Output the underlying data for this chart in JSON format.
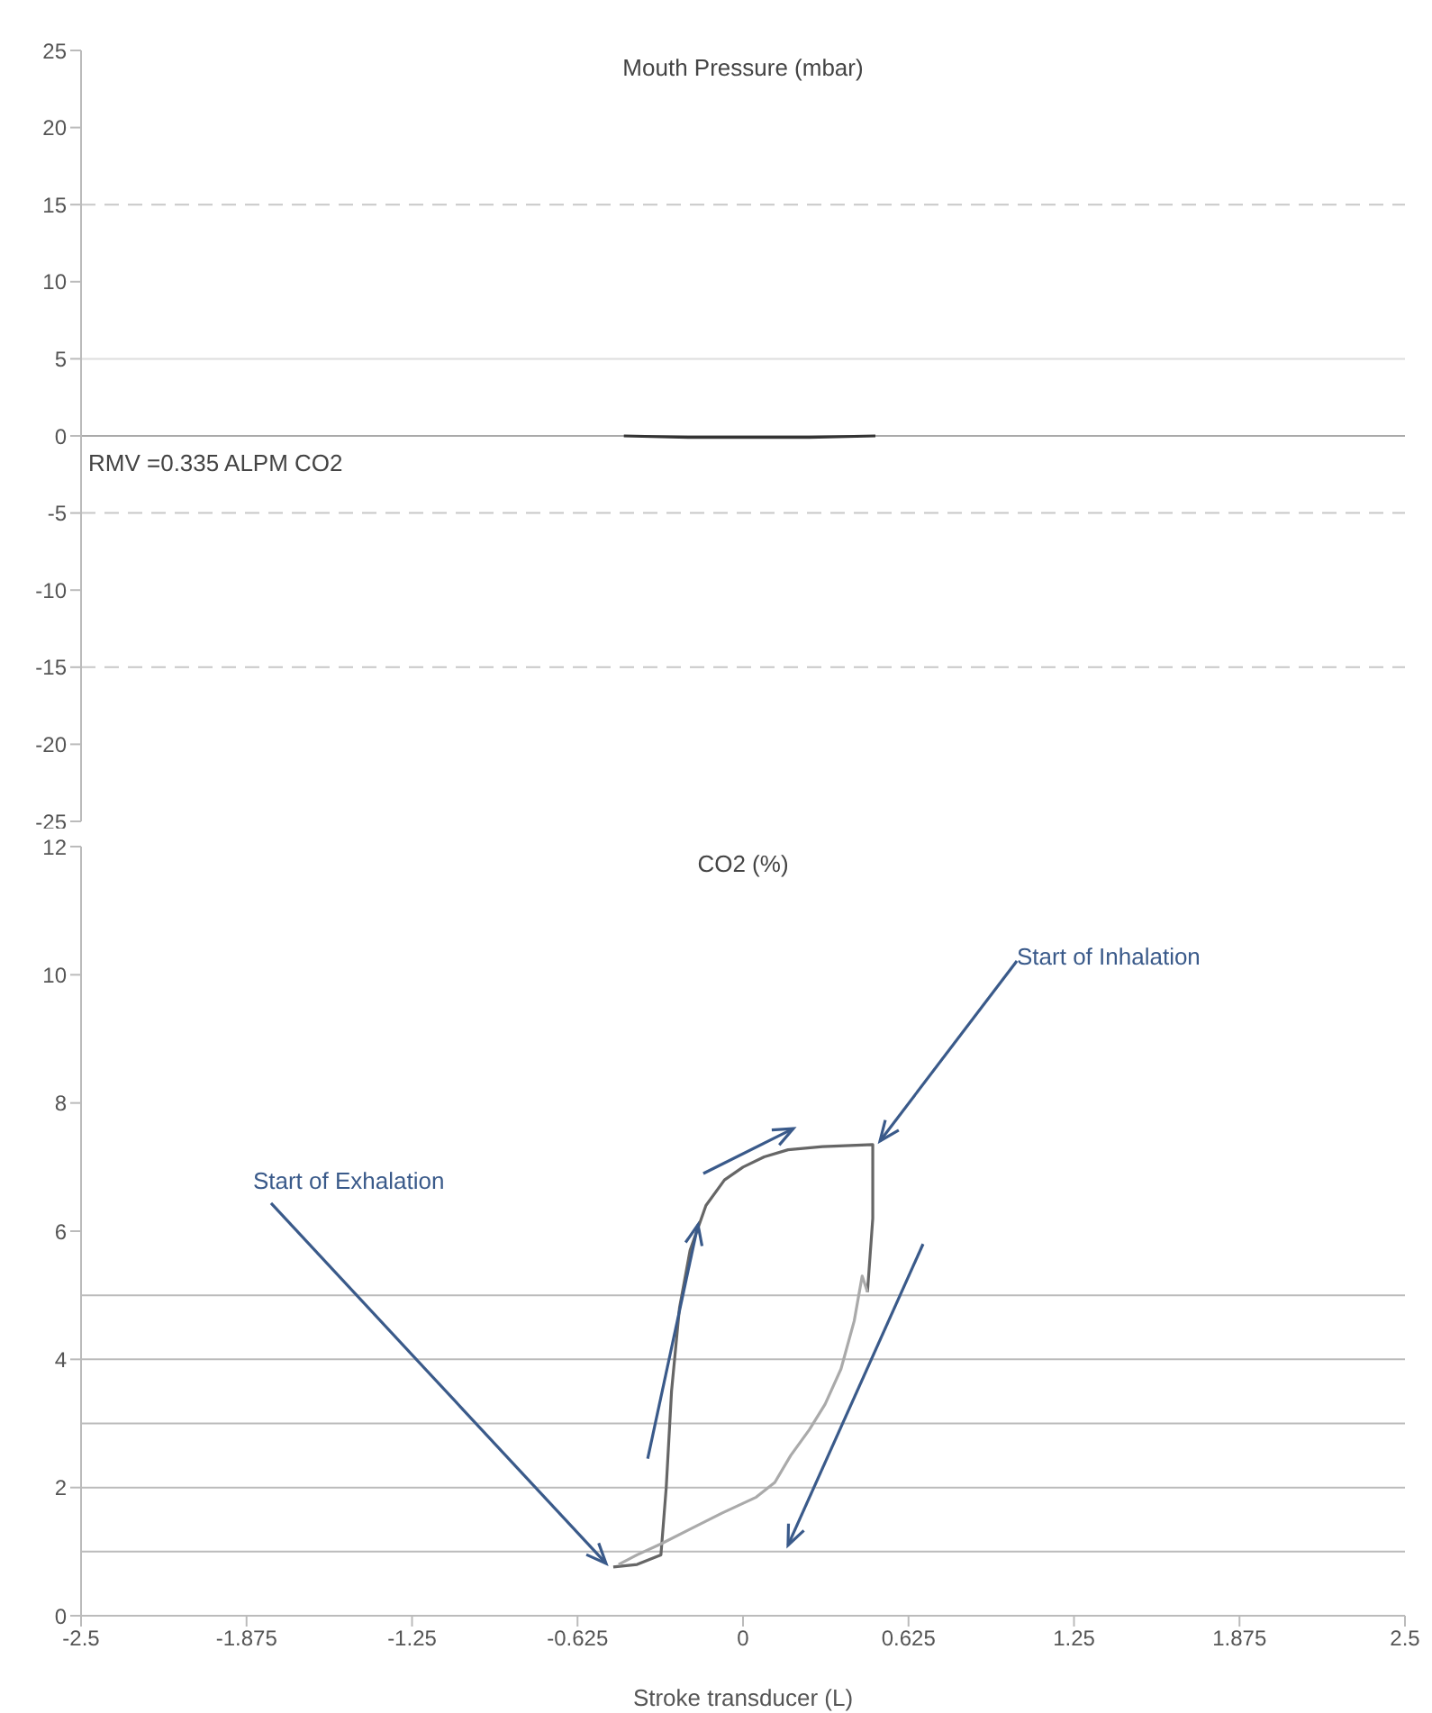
{
  "chart_data": [
    {
      "type": "line",
      "title": "Mouth Pressure (mbar)",
      "x": [
        -0.45,
        -0.2,
        0,
        0.25,
        0.5
      ],
      "series": [
        {
          "color": "#333333",
          "values": [
            0,
            -0.1,
            -0.1,
            -0.1,
            0
          ]
        }
      ],
      "xlim": [
        -2.5,
        2.5
      ],
      "ylim": [
        -25,
        25
      ],
      "yticks": [
        -25,
        -20,
        -15,
        -10,
        -5,
        0,
        5,
        10,
        15,
        20,
        25
      ],
      "tick_labels": "y",
      "marker": "none",
      "ref_lines": [
        {
          "axis": "y",
          "value": 15,
          "color": "#c8c8c8",
          "line_style": "dashed"
        },
        {
          "axis": "y",
          "value": 5,
          "color": "#dddddd",
          "line_style": "solid"
        },
        {
          "axis": "y",
          "value": 0,
          "color": "#aaaaaa",
          "line_style": "solid"
        },
        {
          "axis": "y",
          "value": -5,
          "color": "#c8c8c8",
          "line_style": "dashed"
        },
        {
          "axis": "y",
          "value": -15,
          "color": "#c8c8c8",
          "line_style": "dashed"
        }
      ],
      "annotations": [
        "RMV =0.335 ALPM CO2"
      ]
    },
    {
      "type": "line",
      "title": "CO2 (%)",
      "xlabel": "Stroke transducer (L)",
      "series": [
        {
          "color": "#666666",
          "x": [
            -0.49,
            -0.4,
            -0.31,
            -0.29,
            -0.27,
            -0.24,
            -0.2,
            -0.14,
            -0.07,
            0,
            0.08,
            0.17,
            0.3,
            0.49,
            0.49,
            0.47
          ],
          "values": [
            0.76,
            0.8,
            0.95,
            2,
            3.5,
            4.8,
            5.7,
            6.4,
            6.8,
            7.0,
            7.16,
            7.27,
            7.32,
            7.35,
            6.2,
            5.05
          ]
        },
        {
          "color": "#aaaaaa",
          "x": [
            0.47,
            0.45,
            0.42,
            0.37,
            0.31,
            0.25,
            0.18,
            0.12,
            0.05,
            -0.08,
            -0.2,
            -0.31,
            -0.4,
            -0.47
          ],
          "values": [
            5.05,
            5.3,
            4.6,
            3.85,
            3.3,
            2.9,
            2.5,
            2.08,
            1.85,
            1.6,
            1.35,
            1.12,
            0.95,
            0.8
          ]
        }
      ],
      "xlim": [
        -2.5,
        2.5
      ],
      "xticks": [
        -2.5,
        -1.875,
        -1.25,
        -0.625,
        0,
        0.625,
        1.25,
        1.875,
        2.5
      ],
      "ylim": [
        0,
        12
      ],
      "yticks": [
        0,
        2,
        4,
        6,
        8,
        10,
        12
      ],
      "marker": "none",
      "ref_lines": [
        {
          "axis": "y",
          "value": 1,
          "color": "#bbbbbb"
        },
        {
          "axis": "y",
          "value": 2,
          "color": "#bbbbbb"
        },
        {
          "axis": "y",
          "value": 3,
          "color": "#bbbbbb"
        },
        {
          "axis": "y",
          "value": 4,
          "color": "#bbbbbb"
        },
        {
          "axis": "y",
          "value": 5,
          "color": "#bbbbbb"
        }
      ],
      "annotations": [
        {
          "text": "Start of Inhalation",
          "x": 0.49,
          "y": 7.35
        },
        {
          "text": "Start of Exhalation",
          "x": -0.49,
          "y": 0.76
        }
      ]
    }
  ]
}
